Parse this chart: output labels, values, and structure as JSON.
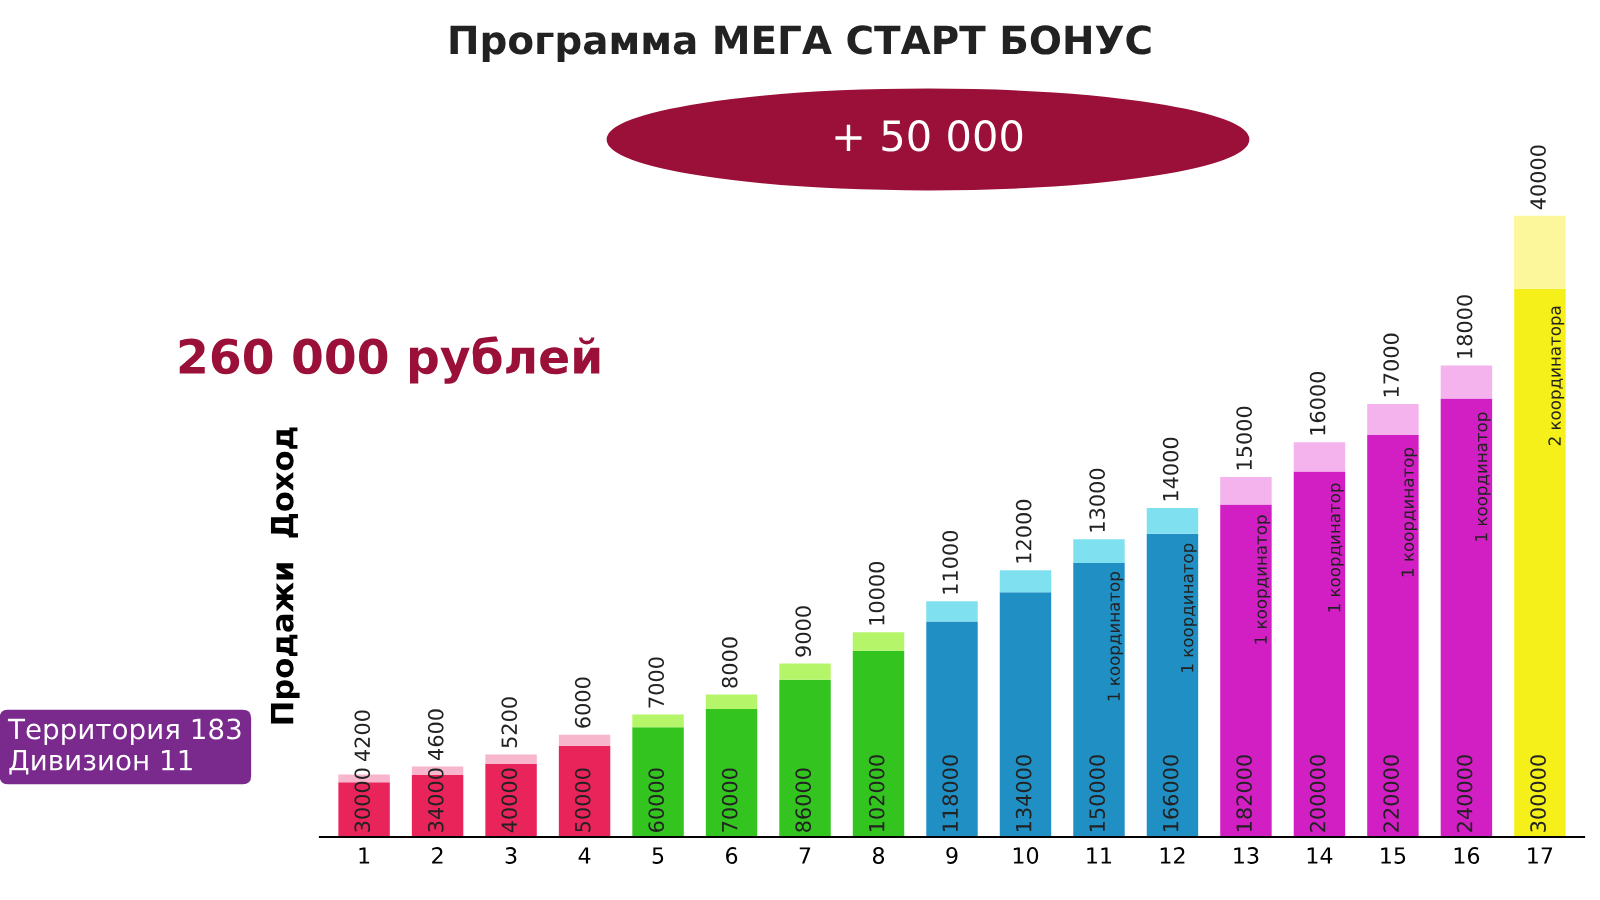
{
  "chart_data": {
    "type": "bar",
    "stacked": true,
    "title": "Программа МЕГА СТАРТ БОНУС",
    "categories": [
      "1",
      "2",
      "3",
      "4",
      "5",
      "6",
      "7",
      "8",
      "9",
      "10",
      "11",
      "12",
      "13",
      "14",
      "15",
      "16",
      "17"
    ],
    "series": [
      {
        "name": "Продажи",
        "values": [
          30000,
          34000,
          40000,
          50000,
          60000,
          70000,
          86000,
          102000,
          118000,
          134000,
          150000,
          166000,
          182000,
          200000,
          220000,
          240000,
          300000
        ],
        "colors": [
          "#e8245a",
          "#e8245a",
          "#e8245a",
          "#e8245a",
          "#33c41f",
          "#33c41f",
          "#33c41f",
          "#33c41f",
          "#1f8fc4",
          "#1f8fc4",
          "#1f8fc4",
          "#1f8fc4",
          "#d21fc4",
          "#d21fc4",
          "#d21fc4",
          "#d21fc4",
          "#f5ef1a"
        ]
      },
      {
        "name": "Доход",
        "values": [
          4200,
          4600,
          5200,
          6000,
          7000,
          8000,
          9000,
          10000,
          11000,
          12000,
          13000,
          14000,
          15000,
          16000,
          17000,
          18000,
          40000
        ],
        "colors": [
          "#f7b6cc",
          "#f7b6cc",
          "#f7b6cc",
          "#f7b6cc",
          "#b5f56a",
          "#b5f56a",
          "#b5f56a",
          "#b5f56a",
          "#7fe0f0",
          "#7fe0f0",
          "#7fe0f0",
          "#7fe0f0",
          "#f5b3ee",
          "#f5b3ee",
          "#f5b3ee",
          "#f5b3ee",
          "#fbf79a"
        ]
      }
    ],
    "data_labels": true,
    "legend": false,
    "grid": false,
    "annotations": [
      "+ 50 000",
      "260 000 рублей",
      "Территория 183\nДивизион 11",
      {
        "text": "1 координатор",
        "x": "11",
        "y": 150000
      },
      {
        "text": "1 координатор",
        "x": "12",
        "y": 166000
      },
      {
        "text": "1 координатор",
        "x": "13",
        "y": 182000
      },
      {
        "text": "1 координатор",
        "x": "14",
        "y": 200000
      },
      {
        "text": "1 координатор",
        "x": "15",
        "y": 220000
      },
      {
        "text": "1 координатор",
        "x": "16",
        "y": 240000
      },
      {
        "text": "2 координатора",
        "x": "17",
        "y": 300000
      }
    ]
  }
}
